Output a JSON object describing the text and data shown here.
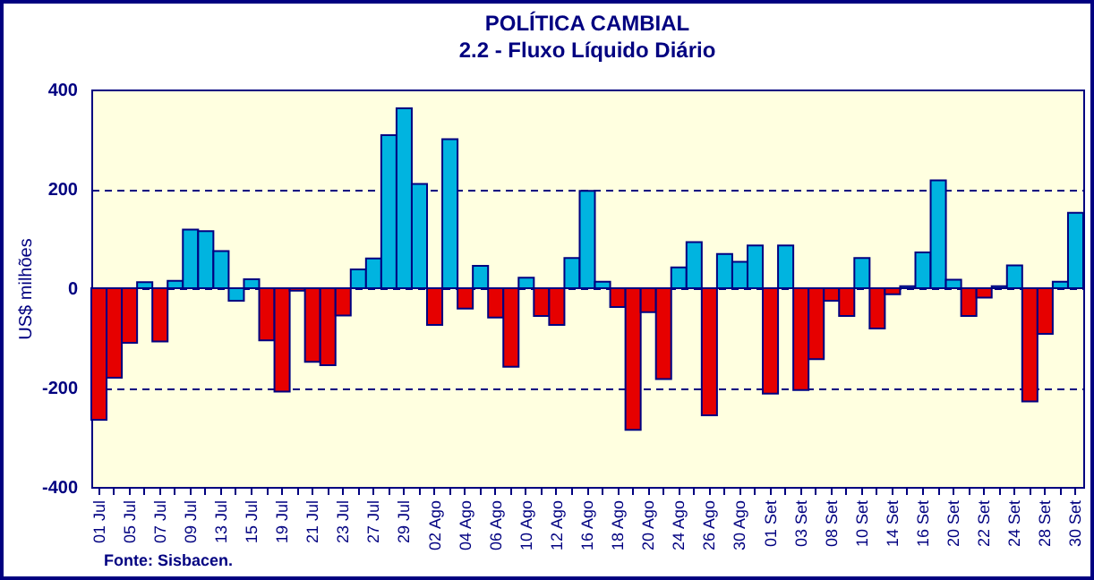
{
  "chart_data": {
    "type": "bar",
    "title": "POLÍTICA CAMBIAL",
    "subtitle": "2.2 - Fluxo Líquido Diário",
    "ylabel": "US$ milhões",
    "annotations": [
      "Fonte: Sisbacen."
    ],
    "categories": [
      "01 Jul",
      null,
      "05 Jul",
      null,
      "07 Jul",
      null,
      "09 Jul",
      null,
      "13 Jul",
      null,
      "15 Jul",
      null,
      "19 Jul",
      null,
      "21 Jul",
      null,
      "23 Jul",
      null,
      "27 Jul",
      null,
      "29 Jul",
      null,
      "02 Ago",
      null,
      "04 Ago",
      null,
      "06 Ago",
      null,
      "10 Ago",
      null,
      "12 Ago",
      null,
      "16 Ago",
      null,
      "18 Ago",
      null,
      "20 Ago",
      null,
      "24 Ago",
      null,
      "26 Ago",
      null,
      "30 Ago",
      null,
      "01 Set",
      null,
      "03 Set",
      null,
      "08 Set",
      null,
      "10 Set",
      null,
      "14 Set",
      null,
      "16 Set",
      null,
      "20 Set",
      null,
      "22 Set",
      null,
      "24 Set",
      null,
      "28 Set",
      null,
      "30 Set"
    ],
    "values": [
      -265,
      -180,
      -110,
      12,
      -107,
      15,
      118,
      115,
      75,
      -25,
      18,
      -105,
      -208,
      -5,
      -148,
      -155,
      -55,
      38,
      60,
      308,
      362,
      210,
      -74,
      300,
      -41,
      45,
      -59,
      -158,
      21,
      -56,
      -74,
      61,
      196,
      13,
      -38,
      -285,
      -48,
      -183,
      42,
      93,
      -256,
      69,
      53,
      86,
      -212,
      86,
      -205,
      -143,
      -25,
      -56,
      61,
      -81,
      -12,
      4,
      72,
      217,
      17,
      -56,
      -19,
      4,
      46,
      -228,
      -92,
      13,
      152
    ],
    "colors": [
      "#e60000",
      "#e60000",
      "#e60000",
      "#00b4e0",
      "#e60000",
      "#00b4e0",
      "#00b4e0",
      "#00b4e0",
      "#00b4e0",
      "#00b4e0",
      "#00b4e0",
      "#e60000",
      "#e60000",
      "#e60000",
      "#e60000",
      "#e60000",
      "#e60000",
      "#00b4e0",
      "#00b4e0",
      "#00b4e0",
      "#00b4e0",
      "#00b4e0",
      "#e60000",
      "#00b4e0",
      "#e60000",
      "#00b4e0",
      "#e60000",
      "#e60000",
      "#00b4e0",
      "#e60000",
      "#e60000",
      "#00b4e0",
      "#00b4e0",
      "#00b4e0",
      "#e60000",
      "#e60000",
      "#e60000",
      "#e60000",
      "#00b4e0",
      "#00b4e0",
      "#e60000",
      "#00b4e0",
      "#00b4e0",
      "#00b4e0",
      "#e60000",
      "#00b4e0",
      "#e60000",
      "#e60000",
      "#e60000",
      "#e60000",
      "#00b4e0",
      "#e60000",
      "#e60000",
      "#00b4e0",
      "#00b4e0",
      "#00b4e0",
      "#00b4e0",
      "#e60000",
      "#e60000",
      "#00b4e0",
      "#00b4e0",
      "#e60000",
      "#e60000",
      "#00b4e0",
      "#00b4e0"
    ],
    "ylim": [
      -400,
      400
    ],
    "yticks": [
      -400,
      -200,
      0,
      200,
      400
    ],
    "grid": "y"
  }
}
